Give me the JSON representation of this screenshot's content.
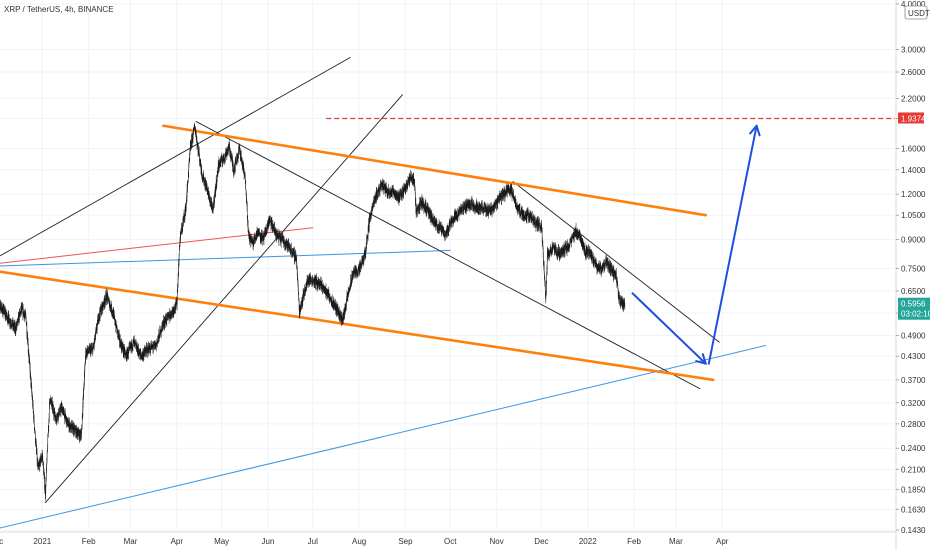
{
  "header": {
    "symbol": "XRP / TetherUS, 4h, BINANCE"
  },
  "currency_button": "USDT",
  "price_badges": {
    "target": "1.9374",
    "current_price": "0.5956",
    "countdown": "03:02:10"
  },
  "colors": {
    "candle": "#1a1a1a",
    "channel_orange": "#ff7f0e",
    "trend_blue": "#3d95e0",
    "arrow_blue": "#1f4fe0",
    "target_red": "#e53935",
    "current_green": "#26a69a",
    "black_line": "#222222",
    "thin_red": "#ef5350"
  },
  "chart_data": {
    "type": "candlestick",
    "title": "XRP / TetherUS, 4h, BINANCE",
    "y_scale": "log",
    "ylim": [
      0.143,
      4.0
    ],
    "y_ticks": [
      0.143,
      0.163,
      0.185,
      0.21,
      0.24,
      0.28,
      0.32,
      0.37,
      0.43,
      0.49,
      0.565,
      0.65,
      0.75,
      0.9,
      1.05,
      1.2,
      1.4,
      1.6,
      1.937,
      2.2,
      2.6,
      3.0,
      4.0
    ],
    "y_tick_labels": [
      "0.1430",
      "0.1630",
      "0.1850",
      "0.2100",
      "0.2400",
      "0.2800",
      "0.3200",
      "0.3700",
      "0.4300",
      "0.4900",
      "",
      "0.6500",
      "0.7500",
      "0.9000",
      "1.0500",
      "1.2000",
      "1.4000",
      "1.6000",
      "",
      "2.2000",
      "2.6000",
      "3.0000",
      "4.0000"
    ],
    "x_range": [
      "2020-12-01",
      "2022-04-30"
    ],
    "x_ticks": [
      {
        "date": "2020-12-01",
        "label": "Dec"
      },
      {
        "date": "2021-01-01",
        "label": "2021"
      },
      {
        "date": "2021-02-01",
        "label": "Feb"
      },
      {
        "date": "2021-03-01",
        "label": "Mar"
      },
      {
        "date": "2021-04-01",
        "label": "Apr"
      },
      {
        "date": "2021-05-01",
        "label": "May"
      },
      {
        "date": "2021-06-01",
        "label": "Jun"
      },
      {
        "date": "2021-07-01",
        "label": "Jul"
      },
      {
        "date": "2021-08-01",
        "label": "Aug"
      },
      {
        "date": "2021-09-01",
        "label": "Sep"
      },
      {
        "date": "2021-10-01",
        "label": "Oct"
      },
      {
        "date": "2021-11-01",
        "label": "Nov"
      },
      {
        "date": "2021-12-01",
        "label": "Dec"
      },
      {
        "date": "2022-01-01",
        "label": "2022"
      },
      {
        "date": "2022-02-01",
        "label": "Feb"
      },
      {
        "date": "2022-03-01",
        "label": "Mar"
      },
      {
        "date": "2022-04-01",
        "label": "Apr"
      }
    ],
    "price_path": [
      [
        "2020-11-28",
        0.33
      ],
      [
        "2020-12-01",
        0.62
      ],
      [
        "2020-12-05",
        0.58
      ],
      [
        "2020-12-10",
        0.54
      ],
      [
        "2020-12-14",
        0.51
      ],
      [
        "2020-12-18",
        0.58
      ],
      [
        "2020-12-21",
        0.55
      ],
      [
        "2020-12-24",
        0.38
      ],
      [
        "2020-12-29",
        0.21
      ],
      [
        "2021-01-01",
        0.23
      ],
      [
        "2021-01-03",
        0.18
      ],
      [
        "2021-01-06",
        0.33
      ],
      [
        "2021-01-10",
        0.29
      ],
      [
        "2021-01-14",
        0.31
      ],
      [
        "2021-01-18",
        0.28
      ],
      [
        "2021-01-22",
        0.27
      ],
      [
        "2021-01-27",
        0.26
      ],
      [
        "2021-01-30",
        0.44
      ],
      [
        "2021-02-04",
        0.45
      ],
      [
        "2021-02-08",
        0.56
      ],
      [
        "2021-02-13",
        0.63
      ],
      [
        "2021-02-17",
        0.57
      ],
      [
        "2021-02-22",
        0.47
      ],
      [
        "2021-02-26",
        0.43
      ],
      [
        "2021-03-03",
        0.47
      ],
      [
        "2021-03-08",
        0.43
      ],
      [
        "2021-03-13",
        0.45
      ],
      [
        "2021-03-18",
        0.46
      ],
      [
        "2021-03-23",
        0.53
      ],
      [
        "2021-03-29",
        0.57
      ],
      [
        "2021-04-01",
        0.6
      ],
      [
        "2021-04-03",
        0.9
      ],
      [
        "2021-04-07",
        1.1
      ],
      [
        "2021-04-10",
        1.6
      ],
      [
        "2021-04-13",
        1.85
      ],
      [
        "2021-04-15",
        1.62
      ],
      [
        "2021-04-18",
        1.35
      ],
      [
        "2021-04-21",
        1.25
      ],
      [
        "2021-04-25",
        1.08
      ],
      [
        "2021-04-29",
        1.45
      ],
      [
        "2021-05-03",
        1.52
      ],
      [
        "2021-05-06",
        1.62
      ],
      [
        "2021-05-09",
        1.4
      ],
      [
        "2021-05-13",
        1.6
      ],
      [
        "2021-05-17",
        1.3
      ],
      [
        "2021-05-19",
        0.92
      ],
      [
        "2021-05-22",
        0.88
      ],
      [
        "2021-05-25",
        0.95
      ],
      [
        "2021-05-29",
        0.9
      ],
      [
        "2021-06-02",
        1.02
      ],
      [
        "2021-06-07",
        0.92
      ],
      [
        "2021-06-11",
        0.9
      ],
      [
        "2021-06-15",
        0.86
      ],
      [
        "2021-06-20",
        0.8
      ],
      [
        "2021-06-22",
        0.57
      ],
      [
        "2021-06-25",
        0.64
      ],
      [
        "2021-06-28",
        0.7
      ],
      [
        "2021-07-03",
        0.69
      ],
      [
        "2021-07-07",
        0.67
      ],
      [
        "2021-07-12",
        0.63
      ],
      [
        "2021-07-17",
        0.58
      ],
      [
        "2021-07-21",
        0.54
      ],
      [
        "2021-07-24",
        0.62
      ],
      [
        "2021-07-28",
        0.73
      ],
      [
        "2021-08-01",
        0.74
      ],
      [
        "2021-08-05",
        0.82
      ],
      [
        "2021-08-08",
        1.03
      ],
      [
        "2021-08-12",
        1.18
      ],
      [
        "2021-08-16",
        1.28
      ],
      [
        "2021-08-20",
        1.22
      ],
      [
        "2021-08-24",
        1.22
      ],
      [
        "2021-08-28",
        1.17
      ],
      [
        "2021-09-01",
        1.26
      ],
      [
        "2021-09-05",
        1.34
      ],
      [
        "2021-09-07",
        1.3
      ],
      [
        "2021-09-08",
        1.08
      ],
      [
        "2021-09-12",
        1.14
      ],
      [
        "2021-09-16",
        1.08
      ],
      [
        "2021-09-20",
        1.0
      ],
      [
        "2021-09-24",
        0.97
      ],
      [
        "2021-09-28",
        0.93
      ],
      [
        "2021-10-02",
        1.02
      ],
      [
        "2021-10-06",
        1.06
      ],
      [
        "2021-10-10",
        1.1
      ],
      [
        "2021-10-14",
        1.13
      ],
      [
        "2021-10-18",
        1.11
      ],
      [
        "2021-10-22",
        1.1
      ],
      [
        "2021-10-26",
        1.08
      ],
      [
        "2021-10-30",
        1.1
      ],
      [
        "2021-11-03",
        1.18
      ],
      [
        "2021-11-06",
        1.2
      ],
      [
        "2021-11-09",
        1.25
      ],
      [
        "2021-11-11",
        1.22
      ],
      [
        "2021-11-15",
        1.1
      ],
      [
        "2021-11-19",
        1.05
      ],
      [
        "2021-11-23",
        1.05
      ],
      [
        "2021-11-27",
        1.0
      ],
      [
        "2021-12-01",
        0.98
      ],
      [
        "2021-12-04",
        0.62
      ],
      [
        "2021-12-05",
        0.82
      ],
      [
        "2021-12-09",
        0.85
      ],
      [
        "2021-12-13",
        0.82
      ],
      [
        "2021-12-17",
        0.85
      ],
      [
        "2021-12-20",
        0.87
      ],
      [
        "2021-12-24",
        0.95
      ],
      [
        "2021-12-27",
        0.92
      ],
      [
        "2021-12-30",
        0.84
      ],
      [
        "2022-01-03",
        0.82
      ],
      [
        "2022-01-06",
        0.77
      ],
      [
        "2022-01-10",
        0.74
      ],
      [
        "2022-01-13",
        0.78
      ],
      [
        "2022-01-17",
        0.74
      ],
      [
        "2022-01-20",
        0.71
      ],
      [
        "2022-01-22",
        0.62
      ],
      [
        "2022-01-24",
        0.6
      ],
      [
        "2022-01-26",
        0.6
      ]
    ],
    "annotations": {
      "orange_channel_upper": [
        [
          "2021-03-23",
          1.85
        ],
        [
          "2022-03-21",
          1.05
        ]
      ],
      "orange_channel_lower": [
        [
          "2020-11-28",
          0.74
        ],
        [
          "2022-03-26",
          0.37
        ]
      ],
      "blue_support_line": [
        [
          "2020-11-28",
          0.143
        ],
        [
          "2022-04-30",
          0.46
        ]
      ],
      "blue_horizontal_line": [
        [
          "2020-11-28",
          0.76
        ],
        [
          "2021-10-01",
          0.84
        ]
      ],
      "red_thin_line": [
        [
          "2020-11-28",
          0.77
        ],
        [
          "2021-07-01",
          0.97
        ]
      ],
      "black_channel_upper_1": [
        [
          "2020-12-01",
          0.8
        ],
        [
          "2021-07-26",
          2.85
        ]
      ],
      "black_channel_upper_2": [
        [
          "2021-01-03",
          0.17
        ],
        [
          "2021-08-30",
          2.25
        ]
      ],
      "black_wedge_upper": [
        [
          "2021-04-14",
          1.9
        ],
        [
          "2022-03-17",
          0.35
        ]
      ],
      "black_falling_upper": [
        [
          "2021-11-12",
          1.3
        ],
        [
          "2022-03-30",
          0.47
        ]
      ],
      "target_level": 1.9374,
      "arrow_down": [
        [
          "2022-01-31",
          0.64
        ],
        [
          "2022-03-21",
          0.41
        ]
      ],
      "arrow_up": [
        [
          "2022-03-23",
          0.41
        ],
        [
          "2022-04-24",
          1.85
        ]
      ]
    }
  }
}
